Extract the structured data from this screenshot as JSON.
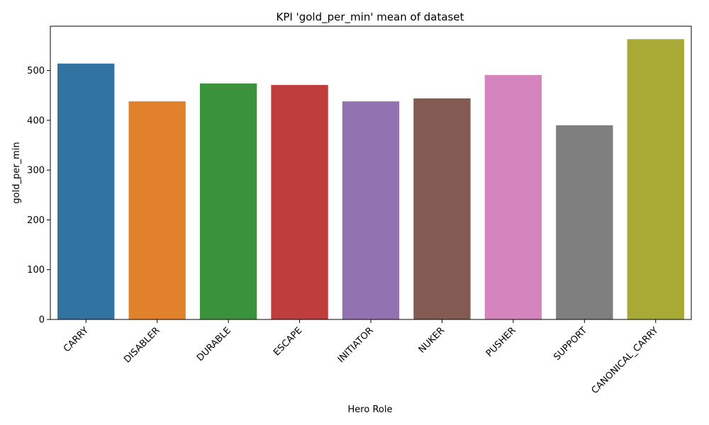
{
  "chart_data": {
    "type": "bar",
    "title": "KPI 'gold_per_min' mean of dataset",
    "xlabel": "Hero Role",
    "ylabel": "gold_per_min",
    "categories": [
      "CARRY",
      "DISABLER",
      "DURABLE",
      "ESCAPE",
      "INITIATOR",
      "NUKER",
      "PUSHER",
      "SUPPORT",
      "CANONICAL_CARRY"
    ],
    "values": [
      514,
      438,
      474,
      471,
      438,
      444,
      491,
      390,
      563
    ],
    "colors": [
      "#3274a1",
      "#e1812c",
      "#3a923a",
      "#c03d3e",
      "#9372b2",
      "#845b53",
      "#d684bd",
      "#7f7f7f",
      "#a9aa35"
    ],
    "ylim": [
      0,
      589
    ],
    "yticks": [
      0,
      100,
      200,
      300,
      400,
      500
    ],
    "grid": false,
    "legend": "none"
  }
}
